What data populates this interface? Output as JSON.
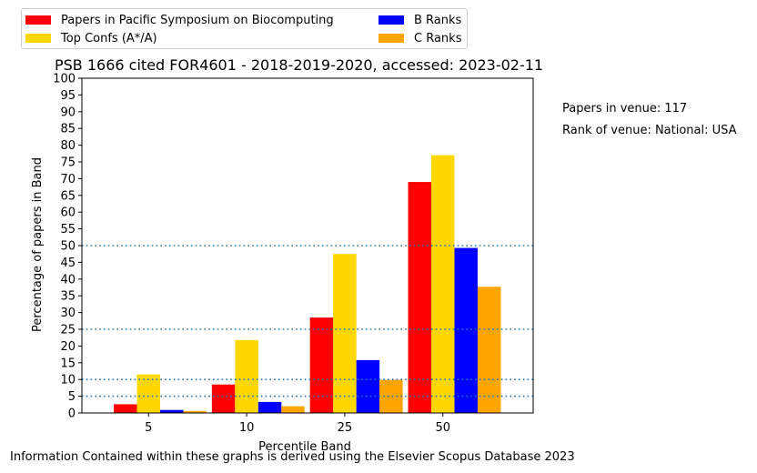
{
  "chart_data": {
    "type": "bar",
    "title": "PSB 1666 cited FOR4601 - 2018-2019-2020, accessed: 2023-02-11",
    "xlabel": "Percentile Band",
    "ylabel": "Percentage of papers in Band",
    "categories": [
      "5",
      "10",
      "25",
      "50"
    ],
    "ylim": [
      0,
      100
    ],
    "yticks": [
      0,
      5,
      10,
      15,
      20,
      25,
      30,
      35,
      40,
      45,
      50,
      55,
      60,
      65,
      70,
      75,
      80,
      85,
      90,
      95,
      100
    ],
    "reference_lines": [
      5,
      10,
      25,
      50
    ],
    "reference_line_color": "#1f77b4",
    "legend_position": "upper-left-outside",
    "series": [
      {
        "name": "Papers in Pacific Symposium on Biocomputing",
        "color": "#ff0000",
        "values": [
          2.6,
          8.5,
          28.5,
          69.0
        ]
      },
      {
        "name": "Top Confs (A*/A)",
        "color": "#ffd700",
        "values": [
          11.5,
          21.8,
          47.5,
          77.0
        ]
      },
      {
        "name": "B Ranks",
        "color": "#0000ff",
        "values": [
          0.9,
          3.3,
          15.8,
          49.3
        ]
      },
      {
        "name": "C Ranks",
        "color": "#ffa500",
        "values": [
          0.6,
          2.0,
          9.9,
          37.7
        ]
      }
    ]
  },
  "annotations": {
    "papers_in_venue": "Papers in venue: 117",
    "rank_of_venue": "Rank of venue: National: USA"
  },
  "footer": "Information Contained within these graphs is derived using the Elsevier Scopus Database 2023"
}
